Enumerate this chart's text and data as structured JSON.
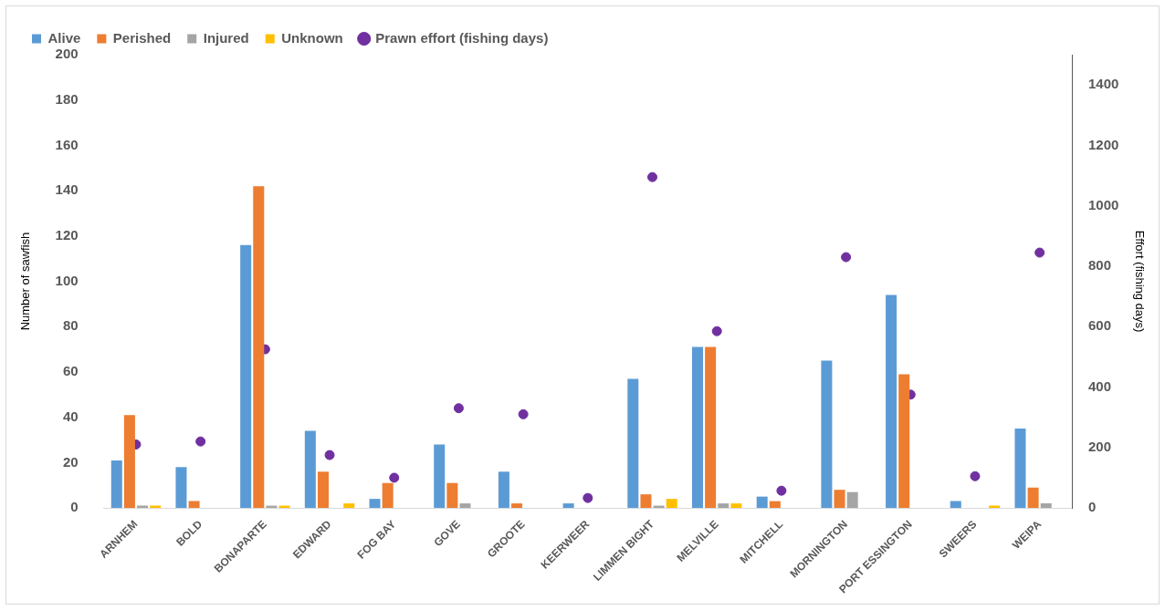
{
  "chart_data": {
    "type": "bar",
    "categories": [
      "ARNHEM",
      "BOLD",
      "BONAPARTE",
      "EDWARD",
      "FOG BAY",
      "GOVE",
      "GROOTE",
      "KEERWEER",
      "LIMMEN BIGHT",
      "MELVILLE",
      "MITCHELL",
      "MORNINGTON",
      "PORT ESSINGTON",
      "SWEERS",
      "WEIPA"
    ],
    "series": [
      {
        "name": "Alive",
        "color": "#5b9bd5",
        "values": [
          21,
          18,
          116,
          34,
          4,
          28,
          16,
          2,
          57,
          71,
          5,
          65,
          94,
          3,
          35
        ]
      },
      {
        "name": "Perished",
        "color": "#ed7d31",
        "values": [
          41,
          3,
          142,
          16,
          11,
          11,
          2,
          0,
          6,
          71,
          3,
          8,
          59,
          0,
          9
        ]
      },
      {
        "name": "Injured",
        "color": "#a5a5a5",
        "values": [
          1,
          0,
          1,
          0,
          0,
          2,
          0,
          0,
          1,
          2,
          0,
          7,
          0,
          0,
          2
        ]
      },
      {
        "name": "Unknown",
        "color": "#ffc000",
        "values": [
          1,
          0,
          1,
          2,
          0,
          0,
          0,
          0,
          4,
          2,
          0,
          0,
          0,
          1,
          0
        ]
      },
      {
        "name": "Prawn effort (fishing days)",
        "type": "scatter",
        "axis": "y2",
        "color": "#7030a0",
        "x": [
          "ARNHEM",
          "BOLD",
          "BONAPARTE",
          "EDWARD",
          "FOG BAY",
          "GOVE",
          "GROOTE",
          "KEERWEER",
          "LIMMEN BIGHT",
          "MELVILLE",
          "MITCHELL",
          "MORNINGTON",
          "PORT ESSINGTON",
          "SWEERS",
          "WEIPA"
        ],
        "values": [
          210,
          220,
          525,
          175,
          100,
          330,
          310,
          33,
          1095,
          585,
          57,
          830,
          375,
          105,
          845
        ]
      }
    ],
    "ylabel": "Number of sawfish",
    "y2label": "Effort (fishing days)",
    "ylim": [
      0,
      200
    ],
    "yticks": [
      0,
      20,
      40,
      60,
      80,
      100,
      120,
      140,
      160,
      180,
      200
    ],
    "y2lim": [
      0,
      1500
    ],
    "y2ticks": [
      0,
      200,
      400,
      600,
      800,
      1000,
      1200,
      1400
    ],
    "grid": false,
    "legend": "top left",
    "marker": "circle"
  }
}
